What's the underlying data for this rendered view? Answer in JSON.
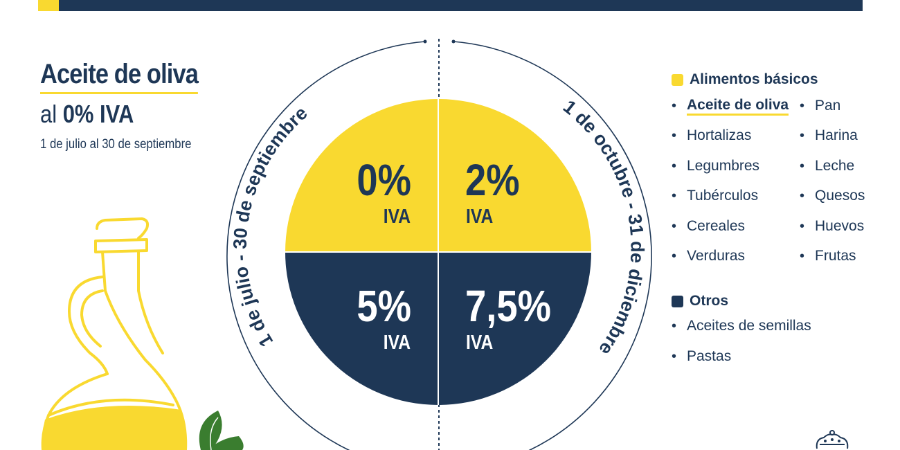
{
  "header": {
    "bar_color": "#1e3756",
    "accent_color": "#f9d930"
  },
  "title": {
    "main": "Aceite de oliva",
    "sub_prefix": "al ",
    "sub_bold": "0% IVA",
    "date": "1 de julio al 30 de septiembre"
  },
  "timeline": {
    "left_label": "1 de julio - 30 de septiembre",
    "right_label": "1 de octubre - 31 de diciembre"
  },
  "pie": {
    "quadrants": [
      {
        "value": "0%",
        "label": "IVA",
        "color": "#f9d930"
      },
      {
        "value": "2%",
        "label": "IVA",
        "color": "#f9d930"
      },
      {
        "value": "5%",
        "label": "IVA",
        "color": "#1e3756"
      },
      {
        "value": "7,5%",
        "label": "IVA",
        "color": "#1e3756"
      }
    ]
  },
  "legend": {
    "basicos": {
      "title": "Alimentos básicos",
      "color": "#f9d930",
      "col1": [
        "Aceite de oliva",
        "Hortalizas",
        "Legumbres",
        "Tubérculos",
        "Cereales",
        "Verduras"
      ],
      "col2": [
        "Pan",
        "Harina",
        "Leche",
        "Quesos",
        "Huevos",
        "Frutas"
      ]
    },
    "otros": {
      "title": "Otros",
      "color": "#1e3756",
      "items": [
        "Aceites de semillas",
        "Pastas"
      ]
    },
    "bullet": "•"
  },
  "icons": {
    "bottle": "olive-oil-bottle-icon",
    "leaves": "olive-leaves-icon",
    "crown": "royal-crown-icon"
  }
}
